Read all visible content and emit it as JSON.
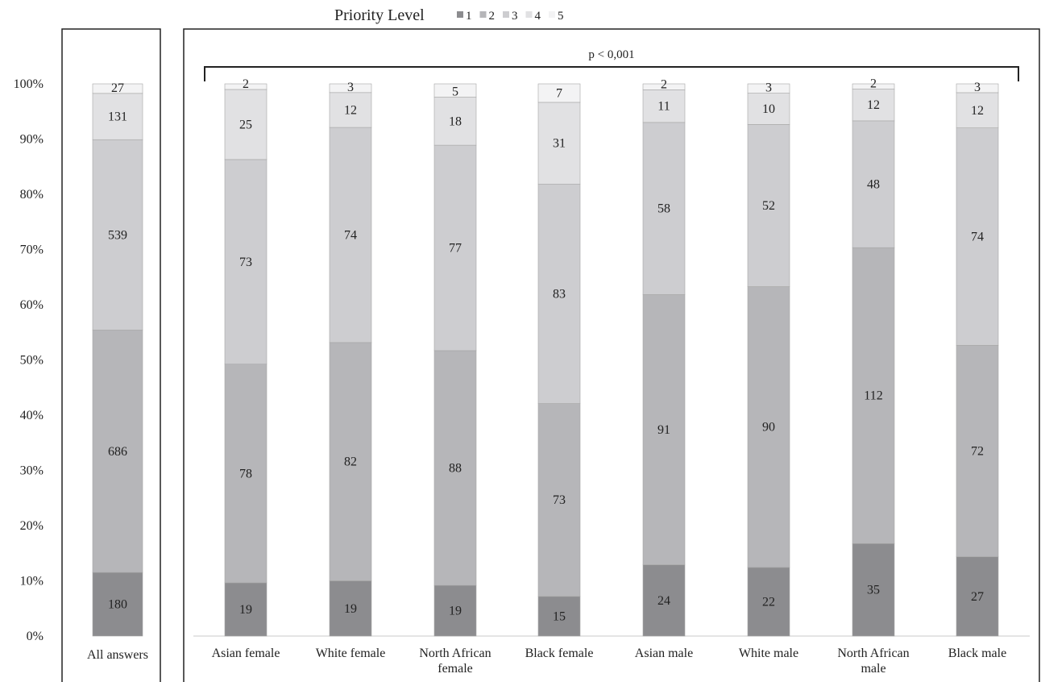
{
  "chart_data": {
    "type": "bar",
    "stacked": "percent",
    "legend": {
      "title": "Priority Level",
      "placement": "top-center",
      "items": [
        "1",
        "2",
        "3",
        "4",
        "5"
      ]
    },
    "colors": [
      "#8c8c8f",
      "#b6b6b9",
      "#cdcdd0",
      "#e1e1e3",
      "#f3f3f4"
    ],
    "y_axis": {
      "ticks": [
        "0%",
        "10%",
        "20%",
        "30%",
        "40%",
        "50%",
        "60%",
        "70%",
        "80%",
        "90%",
        "100%"
      ],
      "ylim": [
        0,
        100
      ]
    },
    "grid": false,
    "panels": [
      {
        "categories": [
          {
            "lines": [
              "All answers"
            ]
          }
        ],
        "series": [
          {
            "name": "1",
            "values": [
              180
            ]
          },
          {
            "name": "2",
            "values": [
              686
            ]
          },
          {
            "name": "3",
            "values": [
              539
            ]
          },
          {
            "name": "4",
            "values": [
              131
            ]
          },
          {
            "name": "5",
            "values": [
              27
            ]
          }
        ]
      },
      {
        "annotation": "p < 0,001",
        "categories": [
          {
            "lines": [
              "Asian female"
            ]
          },
          {
            "lines": [
              "White female"
            ]
          },
          {
            "lines": [
              "North African",
              "female"
            ]
          },
          {
            "lines": [
              "Black female"
            ]
          },
          {
            "lines": [
              "Asian male"
            ]
          },
          {
            "lines": [
              "White male"
            ]
          },
          {
            "lines": [
              "North African",
              "male"
            ]
          },
          {
            "lines": [
              "Black male"
            ]
          }
        ],
        "series": [
          {
            "name": "1",
            "values": [
              19,
              19,
              19,
              15,
              24,
              22,
              35,
              27
            ]
          },
          {
            "name": "2",
            "values": [
              78,
              82,
              88,
              73,
              91,
              90,
              112,
              72
            ]
          },
          {
            "name": "3",
            "values": [
              73,
              74,
              77,
              83,
              58,
              52,
              48,
              74
            ]
          },
          {
            "name": "4",
            "values": [
              25,
              12,
              18,
              31,
              11,
              10,
              12,
              12
            ]
          },
          {
            "name": "5",
            "values": [
              2,
              3,
              5,
              7,
              2,
              3,
              2,
              3
            ]
          }
        ]
      }
    ]
  }
}
